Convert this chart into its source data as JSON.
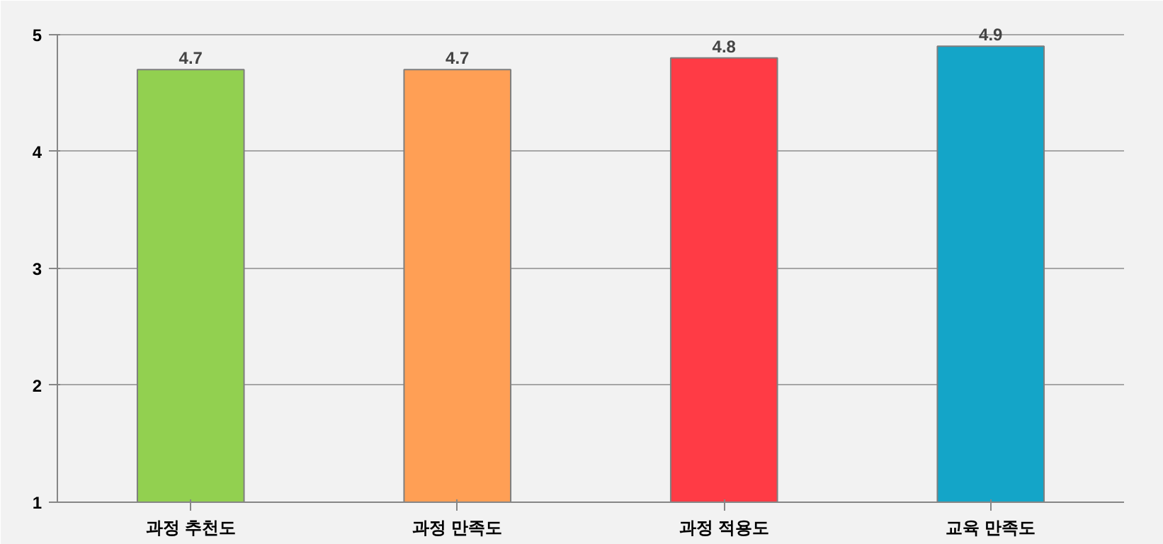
{
  "chart_data": {
    "type": "bar",
    "categories": [
      "과정 추천도",
      "과정 만족도",
      "과정 적용도",
      "교육 만족도"
    ],
    "values": [
      4.7,
      4.7,
      4.8,
      4.9
    ],
    "colors": [
      "#92d050",
      "#ff9f55",
      "#ff3b45",
      "#14a5c8"
    ],
    "ylim": [
      1,
      5
    ],
    "yticks": [
      1,
      2,
      3,
      4,
      5
    ],
    "grid": "y",
    "data_labels": true
  }
}
